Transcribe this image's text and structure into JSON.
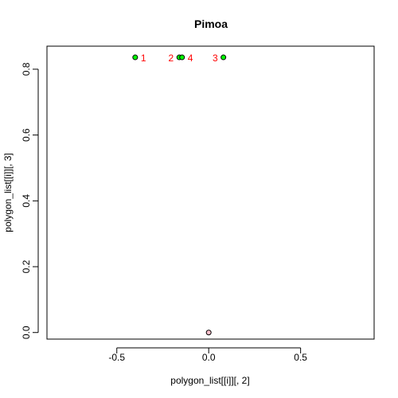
{
  "chart_data": {
    "type": "scatter",
    "title": "Pimoa",
    "xlabel": "polygon_list[[i]][, 2]",
    "ylabel": "polygon_list[[i]][, 3]",
    "xlim": [
      -0.88,
      0.9
    ],
    "ylim": [
      -0.02,
      0.87
    ],
    "xticks": [
      -0.5,
      0.0,
      0.5
    ],
    "xtick_labels": [
      "-0.5",
      "0.0",
      "0.5"
    ],
    "yticks": [
      0.0,
      0.2,
      0.4,
      0.6,
      0.8
    ],
    "ytick_labels": [
      "0.0",
      "0.2",
      "0.4",
      "0.6",
      "0.8"
    ],
    "grid": false,
    "points": [
      {
        "x": -0.4,
        "y": 0.836,
        "label": "1",
        "color": "#00ff00",
        "label_side": "right"
      },
      {
        "x": -0.16,
        "y": 0.836,
        "label": "2",
        "color": "#00ff00",
        "label_side": "left"
      },
      {
        "x": 0.08,
        "y": 0.836,
        "label": "3",
        "color": "#00ff00",
        "label_side": "left"
      },
      {
        "x": -0.145,
        "y": 0.836,
        "label": "4",
        "color": "#00ff00",
        "label_side": "right"
      },
      {
        "x": 0.0,
        "y": 0.0,
        "label": "",
        "color": "#ffc0cb",
        "label_side": "none"
      }
    ],
    "label_color": "#ff0000"
  }
}
